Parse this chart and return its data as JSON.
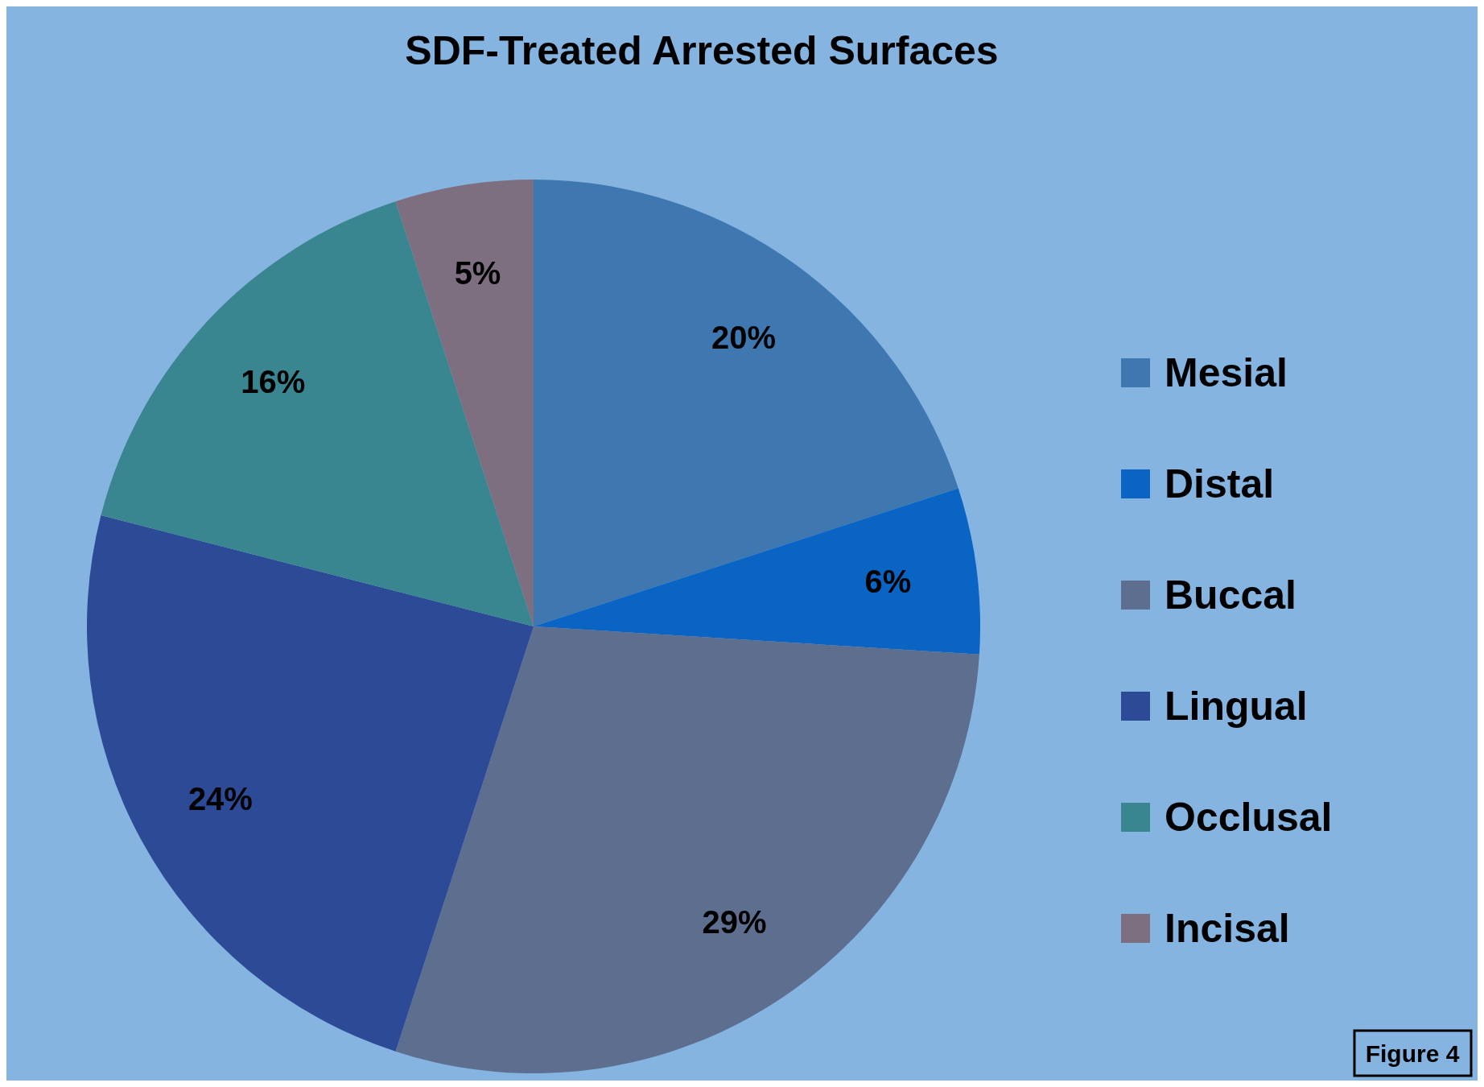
{
  "chart_data": {
    "type": "pie",
    "title": "SDF-Treated Arrested Surfaces",
    "categories": [
      "Mesial",
      "Distal",
      "Buccal",
      "Lingual",
      "Occlusal",
      "Incisal"
    ],
    "values": [
      20,
      6,
      29,
      24,
      16,
      5
    ],
    "colors": [
      "#3f78b0",
      "#0a64c4",
      "#5d6e8e",
      "#2c4a96",
      "#3a8690",
      "#7d6e80"
    ],
    "value_labels": [
      "20%",
      "6%",
      "29%",
      "24%",
      "16%",
      "5%"
    ],
    "legend": "right",
    "annotations": [
      "Figure 4"
    ]
  }
}
